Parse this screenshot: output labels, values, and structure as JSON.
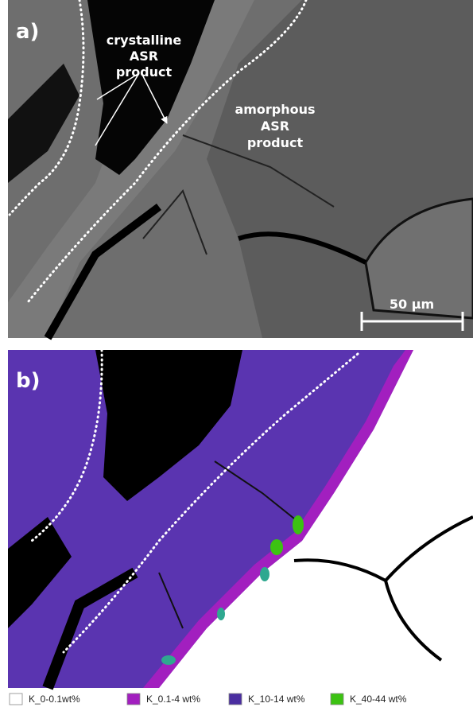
{
  "panels": [
    {
      "label": "a)",
      "annotations": [
        {
          "lines": [
            "crystalline",
            "ASR",
            "product"
          ]
        },
        {
          "lines": [
            "amorphous",
            "ASR",
            "product"
          ]
        }
      ],
      "scale_bar": "50 µm"
    },
    {
      "label": "b)"
    }
  ],
  "legend": [
    {
      "label": "K_0-0.1wt%",
      "color": "#ffffff"
    },
    {
      "label": "K_0.1-4 wt%",
      "color": "#a21fbf"
    },
    {
      "label": "K_10-14 wt%",
      "color": "#4a2ea0"
    },
    {
      "label": "K_40-44 wt%",
      "color": "#3cc212"
    }
  ]
}
